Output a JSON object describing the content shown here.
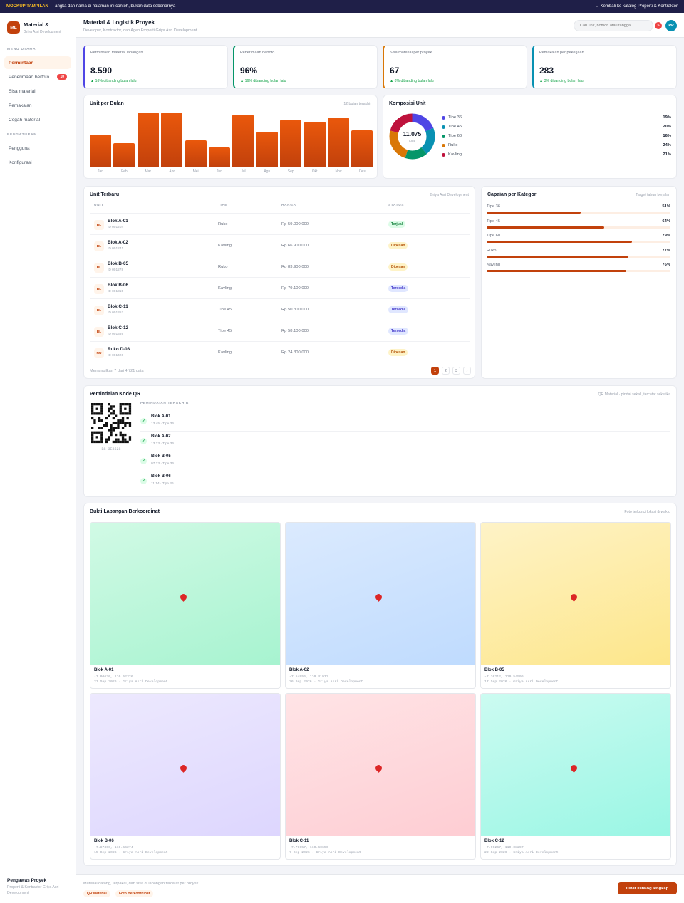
{
  "banner": {
    "tag": "MOCKUP TAMPILAN",
    "text": " — angka dan nama di halaman ini contoh, bukan data sebenarnya",
    "back": "← Kembali ke katalog Properti & Kontraktor"
  },
  "brand": {
    "logo": "ML",
    "name": "Material &",
    "sub": "Griya Asri Development"
  },
  "sidebar": {
    "section1": "MENU UTAMA",
    "items": [
      {
        "label": "Permintaan",
        "badge": ""
      },
      {
        "label": "Penerimaan berfoto",
        "badge": "10"
      },
      {
        "label": "Sisa material",
        "badge": ""
      },
      {
        "label": "Pemakaian",
        "badge": ""
      },
      {
        "label": "Cegah material",
        "badge": ""
      }
    ],
    "section2": "PENGATURAN",
    "items2": [
      {
        "label": "Pengguna"
      },
      {
        "label": "Konfigurasi"
      }
    ],
    "footer_name": "Pengawas Proyek",
    "footer_role": "Properti & Kontraktor Griya Asri Development"
  },
  "header": {
    "title": "Material & Logistik Proyek",
    "subtitle": "Developer, Kontraktor, dan Agen Properti Griya Asri Development",
    "search_placeholder": "Cari unit, nomor, atau tanggal...",
    "notif": "5",
    "avatar": "PP"
  },
  "kpis": [
    {
      "label": "Permintaan material lapangan",
      "value": "8.590",
      "trend": "▲ 16% dibanding bulan lalu",
      "color": "#4f46e5"
    },
    {
      "label": "Penerimaan berfoto",
      "value": "96%",
      "trend": "▲ 16% dibanding bulan lalu",
      "color": "#059669"
    },
    {
      "label": "Sisa material per proyek",
      "value": "67",
      "trend": "▲ 8% dibanding bulan lalu",
      "color": "#d97706"
    },
    {
      "label": "Pemakaian per pekerjaan",
      "value": "283",
      "trend": "▲ 3% dibanding bulan lalu",
      "color": "#0891b2"
    }
  ],
  "bar_card": {
    "title": "Unit per Bulan",
    "hint": "12 bulan terakhir"
  },
  "chart_data": [
    {
      "type": "bar",
      "title": "Unit per Bulan",
      "categories": [
        "Jan",
        "Feb",
        "Mar",
        "Apr",
        "Mei",
        "Jun",
        "Jul",
        "Agu",
        "Sep",
        "Okt",
        "Nov",
        "Des"
      ],
      "values": [
        58,
        42,
        98,
        98,
        47,
        34,
        94,
        63,
        85,
        81,
        88,
        65
      ],
      "ylim": [
        0,
        100
      ],
      "grid": false,
      "color": "#ea580c"
    },
    {
      "type": "pie",
      "title": "Komposisi Unit",
      "center_value": "11.075",
      "center_label": "total",
      "labels": [
        "Tipe 36",
        "Tipe 45",
        "Tipe 60",
        "Ruko",
        "Kavling"
      ],
      "values": [
        19,
        20,
        16,
        24,
        21
      ],
      "display": [
        "19%",
        "20%",
        "16%",
        "24%",
        "21%"
      ],
      "colors": [
        "#4f46e5",
        "#0891b2",
        "#059669",
        "#d97706",
        "#be123c"
      ],
      "legend": "right"
    },
    {
      "type": "bar",
      "title": "Capaian per Kategori",
      "orientation": "horizontal",
      "categories": [
        "Tipe 36",
        "Tipe 45",
        "Tipe 60",
        "Ruko",
        "Kavling"
      ],
      "values": [
        51,
        64,
        79,
        77,
        76
      ],
      "display": [
        "51%",
        "64%",
        "79%",
        "77%",
        "76%"
      ],
      "xlim": [
        0,
        100
      ]
    }
  ],
  "donut_card": {
    "title": "Komposisi Unit"
  },
  "table": {
    "title": "Unit Terbaru",
    "hint": "Griya Asri Development",
    "headers": {
      "unit": "UNIT",
      "type": "TIPE",
      "price": "HARGA",
      "status": "STATUS"
    },
    "rows": [
      {
        "badge": "BL",
        "name": "Blok A-01",
        "id": "ID 001204",
        "type": "Ruko",
        "price": "Rp 59.000.000",
        "status": "Terjual",
        "cls": "st-terjual"
      },
      {
        "badge": "BL",
        "name": "Blok A-02",
        "id": "ID 001241",
        "type": "Kavling",
        "price": "Rp 66.900.000",
        "status": "Dipesan",
        "cls": "st-dipesan"
      },
      {
        "badge": "BL",
        "name": "Blok B-05",
        "id": "ID 001278",
        "type": "Ruko",
        "price": "Rp 83.900.000",
        "status": "Dipesan",
        "cls": "st-dipesan"
      },
      {
        "badge": "BL",
        "name": "Blok B-06",
        "id": "ID 001315",
        "type": "Kavling",
        "price": "Rp 79.100.000",
        "status": "Tersedia",
        "cls": "st-tersedia"
      },
      {
        "badge": "BL",
        "name": "Blok C-11",
        "id": "ID 001352",
        "type": "Tipe 45",
        "price": "Rp 50.300.000",
        "status": "Tersedia",
        "cls": "st-tersedia"
      },
      {
        "badge": "BL",
        "name": "Blok C-12",
        "id": "ID 001389",
        "type": "Tipe 45",
        "price": "Rp 58.100.000",
        "status": "Tersedia",
        "cls": "st-tersedia"
      },
      {
        "badge": "RU",
        "name": "Ruko D-03",
        "id": "ID 001426",
        "type": "Kavling",
        "price": "Rp 24.300.000",
        "status": "Dipesan",
        "cls": "st-dipesan"
      }
    ],
    "footer": "Menampilkan 7 dari 4.721 data",
    "pages": [
      "1",
      "2",
      "3",
      "›"
    ]
  },
  "categories_card": {
    "title": "Capaian per Kategori",
    "hint": "Target tahun berjalan"
  },
  "qr": {
    "title": "Pemindaian Kode QR",
    "hint": "QR Material · pindai sekali, tercatat seketika",
    "code": "BS-3E3528",
    "recent_label": "PEMINDAIAN TERAKHIR",
    "scans": [
      {
        "name": "Blok A-01",
        "meta": "13.45 · Tipe 36"
      },
      {
        "name": "Blok A-02",
        "meta": "13.23 · Tipe 36"
      },
      {
        "name": "Blok B-05",
        "meta": "07.23 · Tipe 36"
      },
      {
        "name": "Blok B-06",
        "meta": "11.14 · Tipe 36"
      }
    ]
  },
  "photos": {
    "title": "Bukti Lapangan Berkoordinat",
    "hint": "Foto terkunci lokasi & waktu",
    "items": [
      {
        "name": "Blok A-01",
        "coords": "-7.00620, 110.52326",
        "date": "21 Sep 2026 · Griya Asri Development",
        "from": "#d1fae5",
        "to": "#a7f3d0"
      },
      {
        "name": "Blok A-02",
        "coords": "-7.54956, 110.41972",
        "date": "26 Sep 2026 · Griya Asri Development",
        "from": "#dbeafe",
        "to": "#bfdbfe"
      },
      {
        "name": "Blok B-05",
        "coords": "-7.36212, 110.54506",
        "date": "17 Sep 2026 · Griya Asri Development",
        "from": "#fef3c7",
        "to": "#fde68a"
      },
      {
        "name": "Blok B-06",
        "coords": "-7.87300, 110.56274",
        "date": "15 Sep 2026 · Griya Asri Development",
        "from": "#ede9fe",
        "to": "#ddd6fe"
      },
      {
        "name": "Blok C-11",
        "coords": "-7.79657, 110.60656",
        "date": "7 Sep 2026 · Griya Asri Development",
        "from": "#ffe4e6",
        "to": "#fecdd3"
      },
      {
        "name": "Blok C-12",
        "coords": "-7.90267, 110.08297",
        "date": "22 Sep 2026 · Griya Asri Development",
        "from": "#ccfbf1",
        "to": "#99f6e4"
      }
    ]
  },
  "footer": {
    "text": "Material datang, terpakai, dan sisa di lapangan tercatat per proyek.",
    "tag1": "QR Material",
    "tag2": "Foto Berkoordinat",
    "cta": "Lihat katalog lengkap"
  }
}
